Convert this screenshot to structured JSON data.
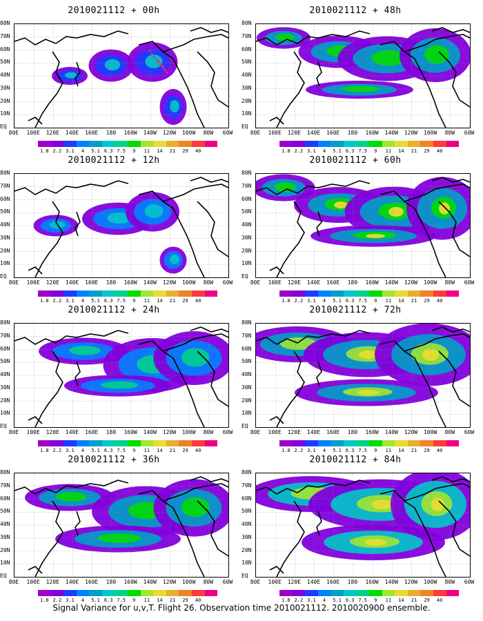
{
  "panels": [
    {
      "title": "2010021112 + 00h",
      "level": 0.15
    },
    {
      "title": "2010021112 + 48h",
      "level": 0.55
    },
    {
      "title": "2010021112 + 12h",
      "level": 0.25
    },
    {
      "title": "2010021112 + 60h",
      "level": 0.65
    },
    {
      "title": "2010021112 + 24h",
      "level": 0.4
    },
    {
      "title": "2010021112 + 72h",
      "level": 0.75
    },
    {
      "title": "2010021112 + 36h",
      "level": 0.5
    },
    {
      "title": "2010021112 + 84h",
      "level": 0.85
    }
  ],
  "lat_labels": [
    "80N",
    "70N",
    "60N",
    "50N",
    "40N",
    "30N",
    "20N",
    "10N",
    "EQ"
  ],
  "lon_labels": [
    "80E",
    "100E",
    "120E",
    "140E",
    "160E",
    "180",
    "160W",
    "140W",
    "120W",
    "100W",
    "80W",
    "60W"
  ],
  "colorbar": {
    "labels": [
      "1.8",
      "2.2",
      "3.1",
      "4",
      "5.1",
      "6.3",
      "7.5",
      "9",
      "11",
      "14",
      "21",
      "29",
      "40"
    ],
    "colors": [
      "#a000c8",
      "#8200dc",
      "#1e3cff",
      "#0082ff",
      "#00a0c8",
      "#00c8c8",
      "#00d28c",
      "#00dc00",
      "#a0e632",
      "#e6dc32",
      "#e6af2d",
      "#f08228",
      "#fa3c3c",
      "#f00082"
    ]
  },
  "caption": "Signal Variance for u,v,T. Flight 26. Observation time 2010021112. 2010020900 ensemble."
}
